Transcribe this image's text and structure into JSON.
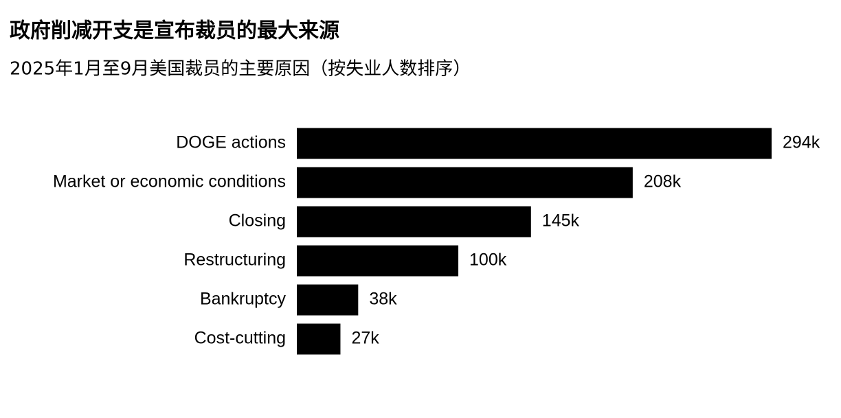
{
  "chart_data": {
    "type": "bar",
    "orientation": "horizontal",
    "title": "政府削减开支是宣布裁员的最大来源",
    "subtitle": "2025年1月至9月美国裁员的主要原因（按失业人数排序）",
    "categories": [
      "DOGE actions",
      "Market or economic conditions",
      "Closing",
      "Restructuring",
      "Bankruptcy",
      "Cost-cutting"
    ],
    "values": [
      294,
      208,
      145,
      100,
      38,
      27
    ],
    "value_labels": [
      "294k",
      "208k",
      "145k",
      "100k",
      "38k",
      "27k"
    ],
    "color": "#000000"
  }
}
